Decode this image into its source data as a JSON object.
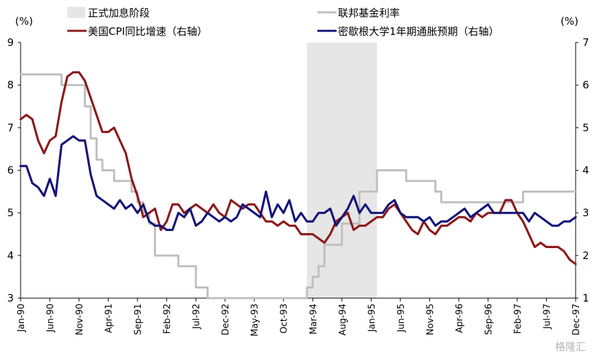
{
  "chart_data": {
    "type": "line",
    "left_unit": "(%)",
    "right_unit": "(%)",
    "left_ylim": [
      3,
      9
    ],
    "right_ylim": [
      1,
      7
    ],
    "left_ticks": [
      "3",
      "4",
      "5",
      "6",
      "7",
      "8",
      "9"
    ],
    "right_ticks": [
      "1",
      "2",
      "3",
      "4",
      "5",
      "6",
      "7"
    ],
    "x_tick_labels": [
      "Jan-90",
      "Jun-90",
      "Nov-90",
      "Apr-91",
      "Sep-91",
      "Feb-92",
      "Jul-92",
      "Dec-92",
      "May-93",
      "Oct-93",
      "Mar-94",
      "Aug-94",
      "Jan-95",
      "Jun-95",
      "Nov-95",
      "Apr-96",
      "Sep-96",
      "Feb-97",
      "Jul-97",
      "Dec-97"
    ],
    "hike_period": {
      "label": "正式加息阶段",
      "start": "1994-02",
      "end": "1995-02",
      "color": "#e6e6e6"
    },
    "series": [
      {
        "name": "联邦基金利率",
        "axis": "left",
        "color": "#bfbfbf",
        "step": true,
        "points": [
          [
            "1990-01",
            8.25
          ],
          [
            "1990-02",
            8.25
          ],
          [
            "1990-03",
            8.25
          ],
          [
            "1990-04",
            8.25
          ],
          [
            "1990-05",
            8.25
          ],
          [
            "1990-06",
            8.25
          ],
          [
            "1990-07",
            8.25
          ],
          [
            "1990-08",
            8.0
          ],
          [
            "1990-09",
            8.0
          ],
          [
            "1990-10",
            8.0
          ],
          [
            "1990-11",
            8.0
          ],
          [
            "1990-12",
            7.5
          ],
          [
            "1991-01",
            6.75
          ],
          [
            "1991-02",
            6.25
          ],
          [
            "1991-03",
            6.0
          ],
          [
            "1991-04",
            6.0
          ],
          [
            "1991-05",
            5.75
          ],
          [
            "1991-06",
            5.75
          ],
          [
            "1991-07",
            5.75
          ],
          [
            "1991-08",
            5.5
          ],
          [
            "1991-09",
            5.25
          ],
          [
            "1991-10",
            5.0
          ],
          [
            "1991-11",
            4.75
          ],
          [
            "1991-12",
            4.0
          ],
          [
            "1992-01",
            4.0
          ],
          [
            "1992-02",
            4.0
          ],
          [
            "1992-03",
            4.0
          ],
          [
            "1992-04",
            3.75
          ],
          [
            "1992-05",
            3.75
          ],
          [
            "1992-06",
            3.75
          ],
          [
            "1992-07",
            3.25
          ],
          [
            "1992-08",
            3.25
          ],
          [
            "1992-09",
            3.0
          ],
          [
            "1992-10",
            3.0
          ],
          [
            "1992-11",
            3.0
          ],
          [
            "1992-12",
            3.0
          ],
          [
            "1993-01",
            3.0
          ],
          [
            "1993-02",
            3.0
          ],
          [
            "1993-03",
            3.0
          ],
          [
            "1993-04",
            3.0
          ],
          [
            "1993-05",
            3.0
          ],
          [
            "1993-06",
            3.0
          ],
          [
            "1993-07",
            3.0
          ],
          [
            "1993-08",
            3.0
          ],
          [
            "1993-09",
            3.0
          ],
          [
            "1993-10",
            3.0
          ],
          [
            "1993-11",
            3.0
          ],
          [
            "1993-12",
            3.0
          ],
          [
            "1994-01",
            3.0
          ],
          [
            "1994-02",
            3.25
          ],
          [
            "1994-03",
            3.5
          ],
          [
            "1994-04",
            3.75
          ],
          [
            "1994-05",
            4.25
          ],
          [
            "1994-06",
            4.25
          ],
          [
            "1994-07",
            4.25
          ],
          [
            "1994-08",
            4.75
          ],
          [
            "1994-09",
            4.75
          ],
          [
            "1994-10",
            4.75
          ],
          [
            "1994-11",
            5.5
          ],
          [
            "1994-12",
            5.5
          ],
          [
            "1995-01",
            5.5
          ],
          [
            "1995-02",
            6.0
          ],
          [
            "1995-03",
            6.0
          ],
          [
            "1995-04",
            6.0
          ],
          [
            "1995-05",
            6.0
          ],
          [
            "1995-06",
            6.0
          ],
          [
            "1995-07",
            5.75
          ],
          [
            "1995-08",
            5.75
          ],
          [
            "1995-09",
            5.75
          ],
          [
            "1995-10",
            5.75
          ],
          [
            "1995-11",
            5.75
          ],
          [
            "1995-12",
            5.5
          ],
          [
            "1996-01",
            5.25
          ],
          [
            "1996-02",
            5.25
          ],
          [
            "1996-03",
            5.25
          ],
          [
            "1996-04",
            5.25
          ],
          [
            "1996-05",
            5.25
          ],
          [
            "1996-06",
            5.25
          ],
          [
            "1996-07",
            5.25
          ],
          [
            "1996-08",
            5.25
          ],
          [
            "1996-09",
            5.25
          ],
          [
            "1996-10",
            5.25
          ],
          [
            "1996-11",
            5.25
          ],
          [
            "1996-12",
            5.25
          ],
          [
            "1997-01",
            5.25
          ],
          [
            "1997-02",
            5.25
          ],
          [
            "1997-03",
            5.5
          ],
          [
            "1997-04",
            5.5
          ],
          [
            "1997-05",
            5.5
          ],
          [
            "1997-06",
            5.5
          ],
          [
            "1997-07",
            5.5
          ],
          [
            "1997-08",
            5.5
          ],
          [
            "1997-09",
            5.5
          ],
          [
            "1997-10",
            5.5
          ],
          [
            "1997-11",
            5.5
          ],
          [
            "1997-12",
            5.5
          ]
        ]
      },
      {
        "name": "美国CPI同比增速（右轴）",
        "axis": "right",
        "color": "#8b1a1a",
        "step": false,
        "points": [
          [
            "1990-01",
            5.2
          ],
          [
            "1990-02",
            5.3
          ],
          [
            "1990-03",
            5.2
          ],
          [
            "1990-04",
            4.7
          ],
          [
            "1990-05",
            4.4
          ],
          [
            "1990-06",
            4.7
          ],
          [
            "1990-07",
            4.8
          ],
          [
            "1990-08",
            5.6
          ],
          [
            "1990-09",
            6.2
          ],
          [
            "1990-10",
            6.3
          ],
          [
            "1990-11",
            6.3
          ],
          [
            "1990-12",
            6.1
          ],
          [
            "1991-01",
            5.7
          ],
          [
            "1991-02",
            5.3
          ],
          [
            "1991-03",
            4.9
          ],
          [
            "1991-04",
            4.9
          ],
          [
            "1991-05",
            5.0
          ],
          [
            "1991-06",
            4.7
          ],
          [
            "1991-07",
            4.4
          ],
          [
            "1991-08",
            3.8
          ],
          [
            "1991-09",
            3.4
          ],
          [
            "1991-10",
            2.9
          ],
          [
            "1991-11",
            3.0
          ],
          [
            "1991-12",
            3.1
          ],
          [
            "1992-01",
            2.6
          ],
          [
            "1992-02",
            2.8
          ],
          [
            "1992-03",
            3.2
          ],
          [
            "1992-04",
            3.2
          ],
          [
            "1992-05",
            3.0
          ],
          [
            "1992-06",
            3.1
          ],
          [
            "1992-07",
            3.2
          ],
          [
            "1992-08",
            3.1
          ],
          [
            "1992-09",
            3.0
          ],
          [
            "1992-10",
            3.2
          ],
          [
            "1992-11",
            3.0
          ],
          [
            "1992-12",
            2.9
          ],
          [
            "1993-01",
            3.3
          ],
          [
            "1993-02",
            3.2
          ],
          [
            "1993-03",
            3.1
          ],
          [
            "1993-04",
            3.2
          ],
          [
            "1993-05",
            3.2
          ],
          [
            "1993-06",
            3.0
          ],
          [
            "1993-07",
            2.8
          ],
          [
            "1993-08",
            2.8
          ],
          [
            "1993-09",
            2.7
          ],
          [
            "1993-10",
            2.8
          ],
          [
            "1993-11",
            2.7
          ],
          [
            "1993-12",
            2.7
          ],
          [
            "1994-01",
            2.5
          ],
          [
            "1994-02",
            2.5
          ],
          [
            "1994-03",
            2.5
          ],
          [
            "1994-04",
            2.4
          ],
          [
            "1994-05",
            2.3
          ],
          [
            "1994-06",
            2.5
          ],
          [
            "1994-07",
            2.8
          ],
          [
            "1994-08",
            2.9
          ],
          [
            "1994-09",
            3.0
          ],
          [
            "1994-10",
            2.6
          ],
          [
            "1994-11",
            2.7
          ],
          [
            "1994-12",
            2.7
          ],
          [
            "1995-01",
            2.8
          ],
          [
            "1995-02",
            2.9
          ],
          [
            "1995-03",
            2.9
          ],
          [
            "1995-04",
            3.1
          ],
          [
            "1995-05",
            3.2
          ],
          [
            "1995-06",
            3.0
          ],
          [
            "1995-07",
            2.8
          ],
          [
            "1995-08",
            2.6
          ],
          [
            "1995-09",
            2.5
          ],
          [
            "1995-10",
            2.8
          ],
          [
            "1995-11",
            2.6
          ],
          [
            "1995-12",
            2.5
          ],
          [
            "1996-01",
            2.7
          ],
          [
            "1996-02",
            2.7
          ],
          [
            "1996-03",
            2.8
          ],
          [
            "1996-04",
            2.9
          ],
          [
            "1996-05",
            2.9
          ],
          [
            "1996-06",
            2.8
          ],
          [
            "1996-07",
            3.0
          ],
          [
            "1996-08",
            2.9
          ],
          [
            "1996-09",
            3.0
          ],
          [
            "1996-10",
            3.0
          ],
          [
            "1996-11",
            3.0
          ],
          [
            "1996-12",
            3.3
          ],
          [
            "1997-01",
            3.3
          ],
          [
            "1997-02",
            3.0
          ],
          [
            "1997-03",
            2.8
          ],
          [
            "1997-04",
            2.5
          ],
          [
            "1997-05",
            2.2
          ],
          [
            "1997-06",
            2.3
          ],
          [
            "1997-07",
            2.2
          ],
          [
            "1997-08",
            2.2
          ],
          [
            "1997-09",
            2.2
          ],
          [
            "1997-10",
            2.1
          ],
          [
            "1997-11",
            1.9
          ],
          [
            "1997-12",
            1.8
          ]
        ]
      },
      {
        "name": "密歇根大学1年期通胀预期（右轴）",
        "axis": "right",
        "color": "#14147a",
        "step": false,
        "points": [
          [
            "1990-01",
            4.1
          ],
          [
            "1990-02",
            4.1
          ],
          [
            "1990-03",
            3.7
          ],
          [
            "1990-04",
            3.6
          ],
          [
            "1990-05",
            3.4
          ],
          [
            "1990-06",
            3.8
          ],
          [
            "1990-07",
            3.4
          ],
          [
            "1990-08",
            4.6
          ],
          [
            "1990-09",
            4.7
          ],
          [
            "1990-10",
            4.8
          ],
          [
            "1990-11",
            4.7
          ],
          [
            "1990-12",
            4.7
          ],
          [
            "1991-01",
            3.9
          ],
          [
            "1991-02",
            3.4
          ],
          [
            "1991-03",
            3.3
          ],
          [
            "1991-04",
            3.2
          ],
          [
            "1991-05",
            3.1
          ],
          [
            "1991-06",
            3.3
          ],
          [
            "1991-07",
            3.1
          ],
          [
            "1991-08",
            3.2
          ],
          [
            "1991-09",
            3.0
          ],
          [
            "1991-10",
            3.2
          ],
          [
            "1991-11",
            2.8
          ],
          [
            "1991-12",
            2.7
          ],
          [
            "1992-01",
            2.7
          ],
          [
            "1992-02",
            2.6
          ],
          [
            "1992-03",
            2.6
          ],
          [
            "1992-04",
            3.0
          ],
          [
            "1992-05",
            2.9
          ],
          [
            "1992-06",
            3.1
          ],
          [
            "1992-07",
            2.7
          ],
          [
            "1992-08",
            2.8
          ],
          [
            "1992-09",
            3.0
          ],
          [
            "1992-10",
            2.9
          ],
          [
            "1992-11",
            2.8
          ],
          [
            "1992-12",
            2.9
          ],
          [
            "1993-01",
            2.8
          ],
          [
            "1993-02",
            2.9
          ],
          [
            "1993-03",
            3.2
          ],
          [
            "1993-04",
            3.1
          ],
          [
            "1993-05",
            3.0
          ],
          [
            "1993-06",
            2.9
          ],
          [
            "1993-07",
            3.5
          ],
          [
            "1993-08",
            2.9
          ],
          [
            "1993-09",
            3.2
          ],
          [
            "1993-10",
            3.0
          ],
          [
            "1993-11",
            3.3
          ],
          [
            "1993-12",
            2.8
          ],
          [
            "1994-01",
            3.0
          ],
          [
            "1994-02",
            2.8
          ],
          [
            "1994-03",
            2.8
          ],
          [
            "1994-04",
            3.0
          ],
          [
            "1994-05",
            3.0
          ],
          [
            "1994-06",
            3.1
          ],
          [
            "1994-07",
            2.7
          ],
          [
            "1994-08",
            2.9
          ],
          [
            "1994-09",
            3.1
          ],
          [
            "1994-10",
            3.4
          ],
          [
            "1994-11",
            3.0
          ],
          [
            "1994-12",
            3.2
          ],
          [
            "1995-01",
            3.0
          ],
          [
            "1995-02",
            3.0
          ],
          [
            "1995-03",
            3.0
          ],
          [
            "1995-04",
            3.2
          ],
          [
            "1995-05",
            3.3
          ],
          [
            "1995-06",
            3.0
          ],
          [
            "1995-07",
            2.9
          ],
          [
            "1995-08",
            2.9
          ],
          [
            "1995-09",
            2.9
          ],
          [
            "1995-10",
            2.8
          ],
          [
            "1995-11",
            2.9
          ],
          [
            "1995-12",
            2.7
          ],
          [
            "1996-01",
            2.8
          ],
          [
            "1996-02",
            2.8
          ],
          [
            "1996-03",
            2.9
          ],
          [
            "1996-04",
            3.0
          ],
          [
            "1996-05",
            3.1
          ],
          [
            "1996-06",
            2.9
          ],
          [
            "1996-07",
            3.0
          ],
          [
            "1996-08",
            3.1
          ],
          [
            "1996-09",
            3.2
          ],
          [
            "1996-10",
            3.0
          ],
          [
            "1996-11",
            3.0
          ],
          [
            "1996-12",
            3.0
          ],
          [
            "1997-01",
            3.0
          ],
          [
            "1997-02",
            3.0
          ],
          [
            "1997-03",
            3.0
          ],
          [
            "1997-04",
            2.8
          ],
          [
            "1997-05",
            3.0
          ],
          [
            "1997-06",
            2.9
          ],
          [
            "1997-07",
            2.8
          ],
          [
            "1997-08",
            2.7
          ],
          [
            "1997-09",
            2.7
          ],
          [
            "1997-10",
            2.8
          ],
          [
            "1997-11",
            2.8
          ],
          [
            "1997-12",
            2.9
          ]
        ]
      }
    ]
  },
  "watermark": "格隆汇"
}
